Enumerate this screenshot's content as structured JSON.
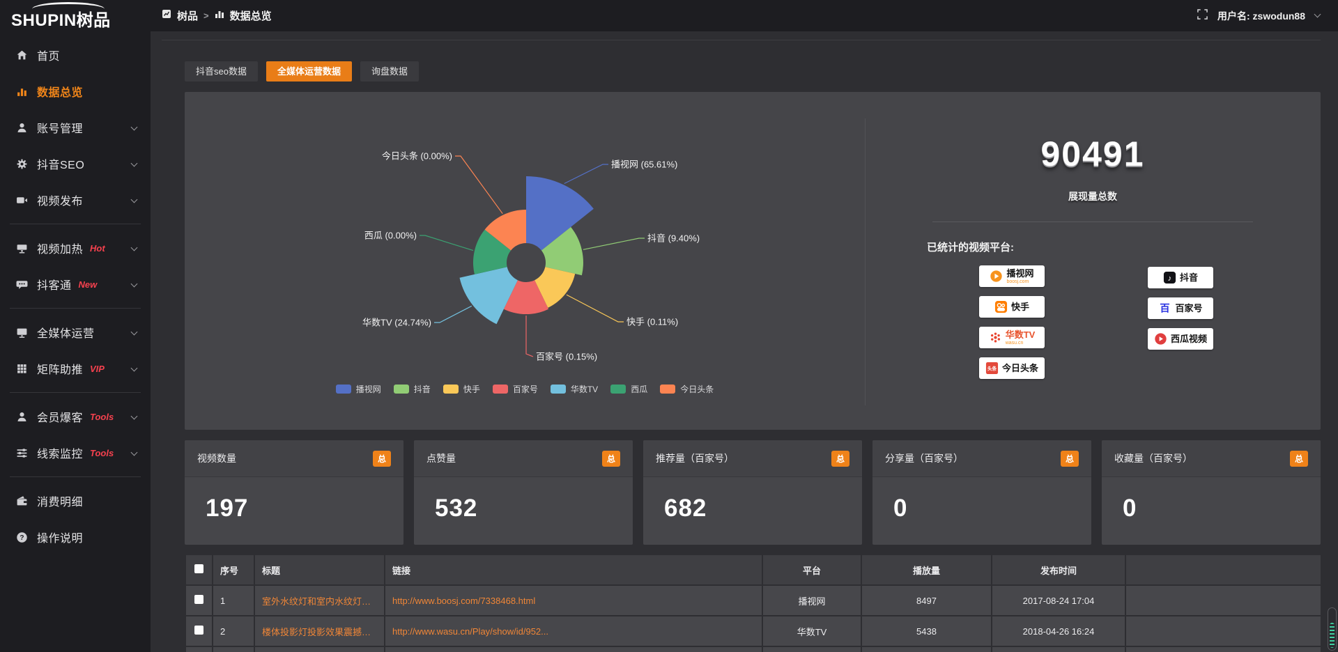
{
  "topbar": {
    "logo_en": "SHUPIN",
    "logo_cn": "树品",
    "breadcrumb": [
      {
        "label": "树品"
      },
      {
        "label": "数据总览"
      }
    ],
    "breadcrumb_separator": ">",
    "username": "用户名: zswodun88"
  },
  "sidebar": {
    "items": [
      {
        "label": "首页",
        "icon": "home",
        "badge": "",
        "chevron": false,
        "active": false,
        "divider_after": false
      },
      {
        "label": "数据总览",
        "icon": "chart",
        "badge": "",
        "chevron": false,
        "active": true,
        "divider_after": false
      },
      {
        "label": "账号管理",
        "icon": "user",
        "badge": "",
        "chevron": true,
        "active": false,
        "divider_after": false
      },
      {
        "label": "抖音SEO",
        "icon": "gear",
        "badge": "",
        "chevron": true,
        "active": false,
        "divider_after": false
      },
      {
        "label": "视频发布",
        "icon": "video",
        "badge": "",
        "chevron": true,
        "active": false,
        "divider_after": true
      },
      {
        "label": "视频加热",
        "icon": "screen",
        "badge": "Hot",
        "chevron": true,
        "active": false,
        "divider_after": false
      },
      {
        "label": "抖客通",
        "icon": "chat",
        "badge": "New",
        "chevron": true,
        "active": false,
        "divider_after": true
      },
      {
        "label": "全媒体运营",
        "icon": "monitor",
        "badge": "",
        "chevron": true,
        "active": false,
        "divider_after": false
      },
      {
        "label": "矩阵助推",
        "icon": "grid",
        "badge": "VIP",
        "chevron": true,
        "active": false,
        "divider_after": true
      },
      {
        "label": "会员爆客",
        "icon": "person",
        "badge": "Tools",
        "chevron": true,
        "active": false,
        "divider_after": false
      },
      {
        "label": "线索监控",
        "icon": "sliders",
        "badge": "Tools",
        "chevron": true,
        "active": false,
        "divider_after": true
      },
      {
        "label": "消费明细",
        "icon": "wallet",
        "badge": "",
        "chevron": false,
        "active": false,
        "divider_after": false
      },
      {
        "label": "操作说明",
        "icon": "help",
        "badge": "",
        "chevron": false,
        "active": false,
        "divider_after": false
      }
    ]
  },
  "tabs": [
    {
      "label": "抖音seo数据",
      "active": false
    },
    {
      "label": "全媒体运营数据",
      "active": true
    },
    {
      "label": "询盘数据",
      "active": false
    }
  ],
  "chart_data": {
    "type": "pie",
    "style": "nightingale-rose-donut",
    "legend_position": "bottom",
    "series": [
      {
        "name": "播视网",
        "pct": 65.61,
        "color": "#5470c6"
      },
      {
        "name": "抖音",
        "pct": 9.4,
        "color": "#91cc75"
      },
      {
        "name": "快手",
        "pct": 0.11,
        "color": "#fac858"
      },
      {
        "name": "百家号",
        "pct": 0.15,
        "color": "#ee6666"
      },
      {
        "name": "华数TV",
        "pct": 24.74,
        "color": "#73c0de"
      },
      {
        "name": "西瓜",
        "pct": 0,
        "color": "#3ba272"
      },
      {
        "name": "今日头条",
        "pct": 0,
        "color": "#fc8452"
      }
    ]
  },
  "summary": {
    "total_value": "90491",
    "total_label": "展现量总数",
    "platforms_title": "已统计的视频平台:",
    "platforms_left": [
      {
        "name": "播视网",
        "sub": "boosj.com",
        "icon": "boosj"
      },
      {
        "name": "快手",
        "sub": "",
        "icon": "kuaishou"
      },
      {
        "name": "华数TV",
        "sub": "wasu.cn",
        "icon": "wasu"
      },
      {
        "name": "今日头条",
        "sub": "",
        "icon": "toutiao"
      }
    ],
    "platforms_right": [
      {
        "name": "抖音",
        "sub": "",
        "icon": "douyin"
      },
      {
        "name": "百家号",
        "sub": "",
        "icon": "baijiahao"
      },
      {
        "name": "西瓜视频",
        "sub": "",
        "icon": "xigua"
      }
    ]
  },
  "stat_cards": [
    {
      "label": "视频数量",
      "badge": "总",
      "value": "197"
    },
    {
      "label": "点赞量",
      "badge": "总",
      "value": "532"
    },
    {
      "label": "推荐量（百家号）",
      "badge": "总",
      "value": "682"
    },
    {
      "label": "分享量（百家号）",
      "badge": "总",
      "value": "0"
    },
    {
      "label": "收藏量（百家号）",
      "badge": "总",
      "value": "0"
    }
  ],
  "table": {
    "columns": [
      "序号",
      "标题",
      "链接",
      "平台",
      "播放量",
      "发布时间"
    ],
    "rows": [
      {
        "index": "1",
        "title": "室外水纹灯和室内水纹灯的区别和简介",
        "link": "http://www.boosj.com/7338468.html",
        "platform": "播视网",
        "views": "8497",
        "time": "2017-08-24 17:04"
      },
      {
        "index": "2",
        "title": "楼体投影灯投影效果震撼上市",
        "link": "http://www.wasu.cn/Play/show/id/952...",
        "platform": "华数TV",
        "views": "5438",
        "time": "2018-04-26 16:24"
      }
    ]
  }
}
